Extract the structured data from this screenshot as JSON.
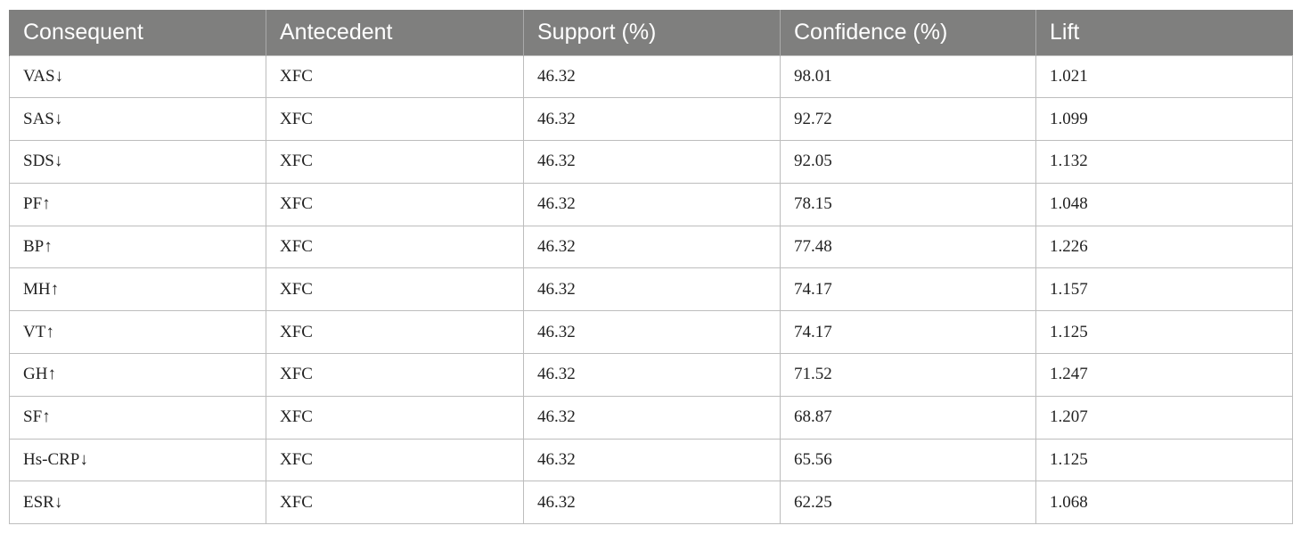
{
  "table": {
    "headers": [
      "Consequent",
      "Antecedent",
      "Support (%)",
      "Confidence (%)",
      "Lift"
    ],
    "rows": [
      [
        "VAS↓",
        "XFC",
        "46.32",
        "98.01",
        "1.021"
      ],
      [
        "SAS↓",
        "XFC",
        "46.32",
        "92.72",
        "1.099"
      ],
      [
        "SDS↓",
        "XFC",
        "46.32",
        "92.05",
        "1.132"
      ],
      [
        "PF↑",
        "XFC",
        "46.32",
        "78.15",
        "1.048"
      ],
      [
        "BP↑",
        "XFC",
        "46.32",
        "77.48",
        "1.226"
      ],
      [
        "MH↑",
        "XFC",
        "46.32",
        "74.17",
        "1.157"
      ],
      [
        "VT↑",
        "XFC",
        "46.32",
        "74.17",
        "1.125"
      ],
      [
        "GH↑",
        "XFC",
        "46.32",
        "71.52",
        "1.247"
      ],
      [
        "SF↑",
        "XFC",
        "46.32",
        "68.87",
        "1.207"
      ],
      [
        "Hs-CRP↓",
        "XFC",
        "46.32",
        "65.56",
        "1.125"
      ],
      [
        "ESR↓",
        "XFC",
        "46.32",
        "62.25",
        "1.068"
      ]
    ]
  },
  "colors": {
    "header_bg": "#7f7f7e",
    "header_text": "#ffffff",
    "grid": "#bdbdbd"
  }
}
